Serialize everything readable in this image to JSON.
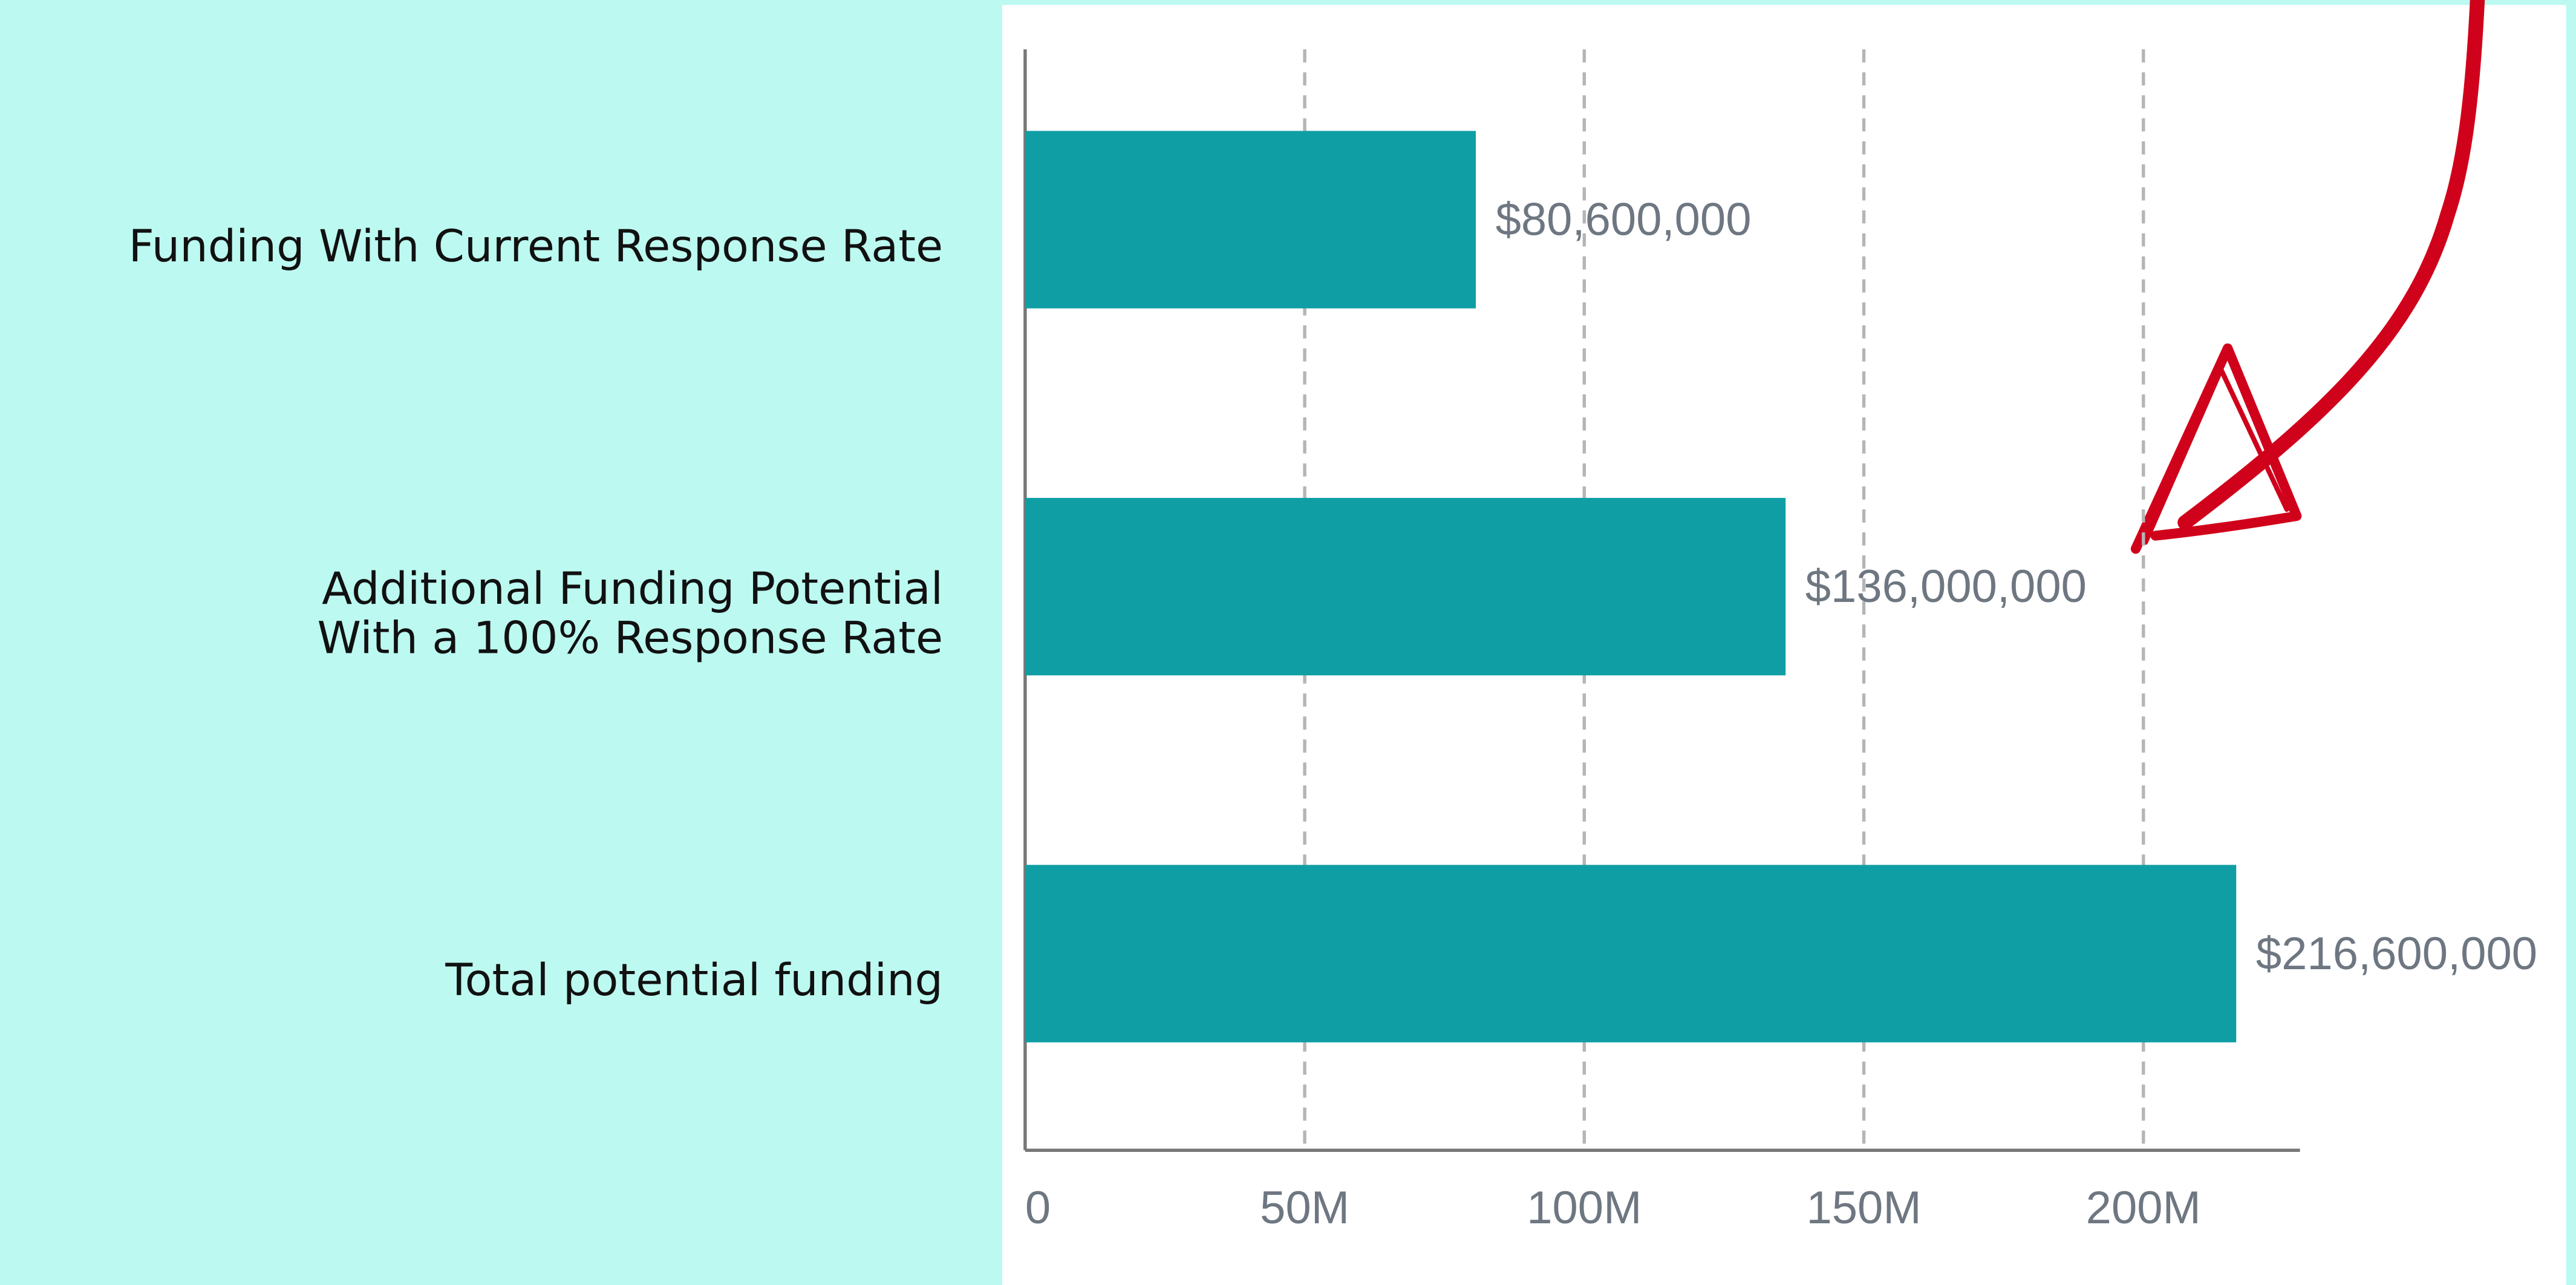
{
  "chart_data": {
    "type": "bar",
    "orientation": "horizontal",
    "categories": [
      "Funding With Current Response Rate",
      "Additional Funding Potential\nWith a 100% Response Rate",
      "Total potential funding"
    ],
    "values": [
      80600000,
      136000000,
      216600000
    ],
    "value_labels": [
      "$80,600,000",
      "$136,000,000",
      "$216,600,000"
    ],
    "color": "#109ea5",
    "xlim": [
      0,
      228000000
    ],
    "xticks": [
      0,
      {
        "value": 50000000,
        "label": "50M"
      },
      {
        "value": 100000000,
        "label": "100M"
      },
      {
        "value": 150000000,
        "label": "150M"
      },
      {
        "value": 200000000,
        "label": "200M"
      }
    ],
    "grid": true
  }
}
